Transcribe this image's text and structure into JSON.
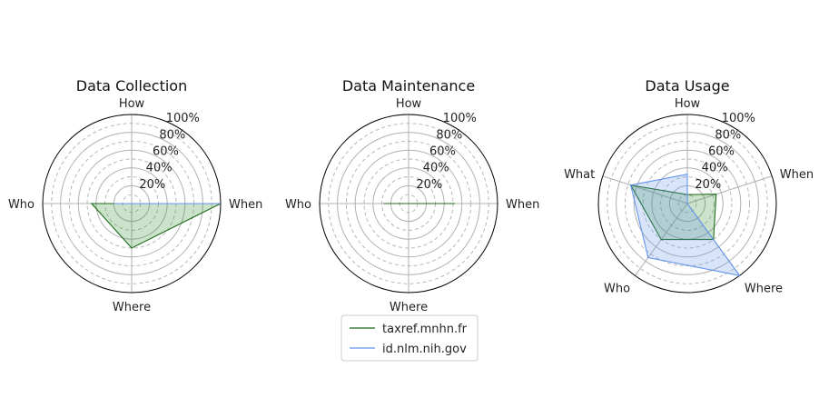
{
  "chart_data": [
    {
      "type": "radar",
      "title": "Data Collection",
      "categories": [
        "When",
        "How",
        "Who",
        "Where"
      ],
      "r_ticks": [
        "20%",
        "40%",
        "60%",
        "80%",
        "100%"
      ],
      "rlim": [
        0,
        100
      ],
      "series": [
        {
          "name": "taxref.mnhn.fr",
          "values": [
            100,
            0,
            45,
            50
          ]
        },
        {
          "name": "id.nlm.nih.gov",
          "values": [
            100,
            0,
            20,
            0
          ]
        }
      ]
    },
    {
      "type": "radar",
      "title": "Data Maintenance",
      "categories": [
        "When",
        "How",
        "Who",
        "Where"
      ],
      "r_ticks": [
        "20%",
        "40%",
        "60%",
        "80%",
        "100%"
      ],
      "rlim": [
        0,
        100
      ],
      "series": [
        {
          "name": "taxref.mnhn.fr",
          "values": [
            52,
            0,
            28,
            0
          ]
        },
        {
          "name": "id.nlm.nih.gov",
          "values": [
            0,
            0,
            0,
            0
          ]
        }
      ]
    },
    {
      "type": "radar",
      "title": "Data Usage",
      "categories": [
        "When",
        "How",
        "What",
        "Who",
        "Where"
      ],
      "r_ticks": [
        "20%",
        "40%",
        "60%",
        "80%",
        "100%"
      ],
      "rlim": [
        0,
        100
      ],
      "series": [
        {
          "name": "taxref.mnhn.fr",
          "values": [
            34,
            10,
            67,
            50,
            50
          ]
        },
        {
          "name": "id.nlm.nih.gov",
          "values": [
            0,
            33,
            67,
            75,
            100
          ]
        }
      ]
    }
  ],
  "legend": {
    "placement": "bottom-center",
    "items": [
      {
        "label": "taxref.mnhn.fr",
        "color": "#1a6b1a"
      },
      {
        "label": "id.nlm.nih.gov",
        "color": "#6495ed"
      }
    ]
  },
  "colors": {
    "series": [
      "#1a6b1a",
      "#6495ed"
    ],
    "fill": [
      "#2e8b2e",
      "#6495ed"
    ],
    "grid": "#b0b0b0",
    "outline": "#000000"
  }
}
